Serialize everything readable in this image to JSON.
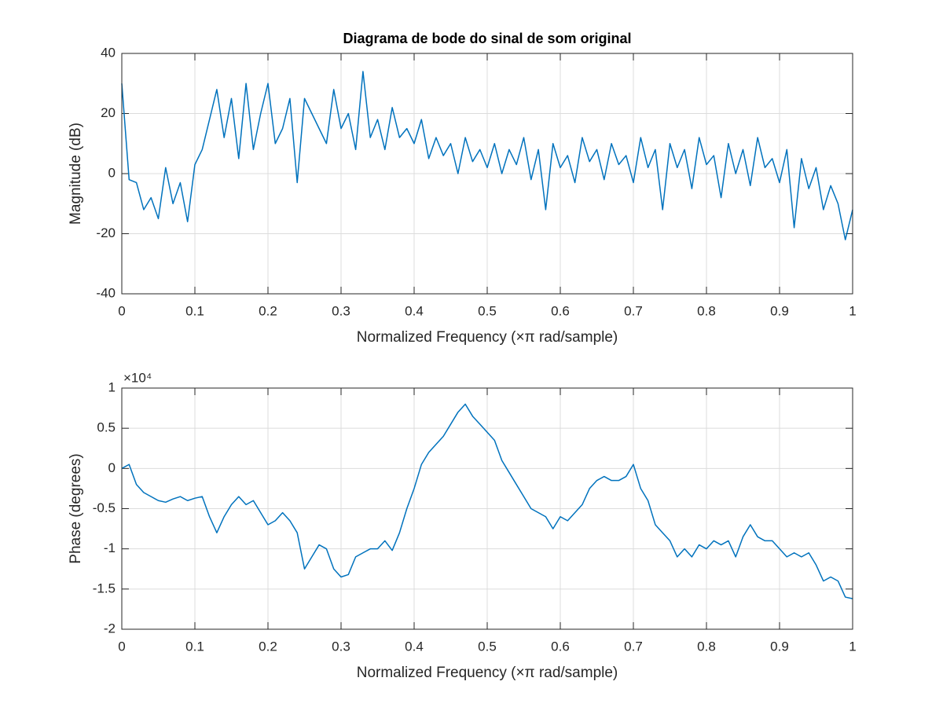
{
  "chart_data": [
    {
      "type": "line",
      "title": "Diagrama de bode do sinal de som original",
      "x_label": "Normalized Frequency  (×π rad/sample)",
      "y_label": "Magnitude (dB)",
      "x": [
        0,
        0.01,
        0.02,
        0.03,
        0.04,
        0.05,
        0.06,
        0.07,
        0.08,
        0.09,
        0.1,
        0.11,
        0.12,
        0.13,
        0.14,
        0.15,
        0.16,
        0.17,
        0.18,
        0.19,
        0.2,
        0.21,
        0.22,
        0.23,
        0.24,
        0.25,
        0.26,
        0.27,
        0.28,
        0.29,
        0.3,
        0.31,
        0.32,
        0.33,
        0.34,
        0.35,
        0.36,
        0.37,
        0.38,
        0.39,
        0.4,
        0.41,
        0.42,
        0.43,
        0.44,
        0.45,
        0.46,
        0.47,
        0.48,
        0.49,
        0.5,
        0.51,
        0.52,
        0.53,
        0.54,
        0.55,
        0.56,
        0.57,
        0.58,
        0.59,
        0.6,
        0.61,
        0.62,
        0.63,
        0.64,
        0.65,
        0.66,
        0.67,
        0.68,
        0.69,
        0.7,
        0.71,
        0.72,
        0.73,
        0.74,
        0.75,
        0.76,
        0.77,
        0.78,
        0.79,
        0.8,
        0.81,
        0.82,
        0.83,
        0.84,
        0.85,
        0.86,
        0.87,
        0.88,
        0.89,
        0.9,
        0.91,
        0.92,
        0.93,
        0.94,
        0.95,
        0.96,
        0.97,
        0.98,
        0.99,
        1
      ],
      "series": [
        {
          "color": "#0072bd",
          "values": [
            30,
            -2,
            -3,
            -12,
            -8,
            -15,
            2,
            -10,
            -3,
            -16,
            3,
            8,
            18,
            28,
            12,
            25,
            5,
            30,
            8,
            20,
            30,
            10,
            15,
            25,
            -3,
            25,
            20,
            15,
            10,
            28,
            15,
            20,
            8,
            34,
            12,
            18,
            8,
            22,
            12,
            15,
            10,
            18,
            5,
            12,
            6,
            10,
            0,
            12,
            4,
            8,
            2,
            10,
            0,
            8,
            3,
            12,
            -2,
            8,
            -12,
            10,
            2,
            6,
            -3,
            12,
            4,
            8,
            -2,
            10,
            3,
            6,
            -3,
            12,
            2,
            8,
            -12,
            10,
            2,
            8,
            -5,
            12,
            3,
            6,
            -8,
            10,
            0,
            8,
            -4,
            12,
            2,
            5,
            -3,
            8,
            -18,
            5,
            -5,
            2,
            -12,
            -4,
            -10,
            -22,
            -12
          ]
        }
      ],
      "xlim": [
        0,
        1
      ],
      "xticks": [
        0,
        0.1,
        0.2,
        0.3,
        0.4,
        0.5,
        0.6,
        0.7,
        0.8,
        0.9,
        1
      ],
      "ylim": [
        -40,
        40
      ],
      "yticks": [
        -40,
        -20,
        0,
        20,
        40
      ],
      "grid": true
    },
    {
      "type": "line",
      "x_label": "Normalized Frequency  (×π rad/sample)",
      "y_label": "Phase (degrees)",
      "y_multiplier": "×10⁴",
      "x": [
        0,
        0.01,
        0.02,
        0.03,
        0.04,
        0.05,
        0.06,
        0.07,
        0.08,
        0.09,
        0.1,
        0.11,
        0.12,
        0.13,
        0.14,
        0.15,
        0.16,
        0.17,
        0.18,
        0.19,
        0.2,
        0.21,
        0.22,
        0.23,
        0.24,
        0.25,
        0.26,
        0.27,
        0.28,
        0.29,
        0.3,
        0.31,
        0.32,
        0.33,
        0.34,
        0.35,
        0.36,
        0.37,
        0.38,
        0.39,
        0.4,
        0.41,
        0.42,
        0.43,
        0.44,
        0.45,
        0.46,
        0.47,
        0.48,
        0.49,
        0.5,
        0.51,
        0.52,
        0.53,
        0.54,
        0.55,
        0.56,
        0.57,
        0.58,
        0.59,
        0.6,
        0.61,
        0.62,
        0.63,
        0.64,
        0.65,
        0.66,
        0.67,
        0.68,
        0.69,
        0.7,
        0.71,
        0.72,
        0.73,
        0.74,
        0.75,
        0.76,
        0.77,
        0.78,
        0.79,
        0.8,
        0.81,
        0.82,
        0.83,
        0.84,
        0.85,
        0.86,
        0.87,
        0.88,
        0.89,
        0.9,
        0.91,
        0.92,
        0.93,
        0.94,
        0.95,
        0.96,
        0.97,
        0.98,
        0.99,
        1
      ],
      "series": [
        {
          "color": "#0072bd",
          "values": [
            0,
            500,
            -2000,
            -3000,
            -3500,
            -4000,
            -4200,
            -3800,
            -3500,
            -4000,
            -3700,
            -3500,
            -6000,
            -8000,
            -6000,
            -4500,
            -3500,
            -4500,
            -4000,
            -5500,
            -7000,
            -6500,
            -5500,
            -6500,
            -8000,
            -12500,
            -11000,
            -9500,
            -10000,
            -12500,
            -13500,
            -13200,
            -11000,
            -10500,
            -10000,
            -10000,
            -9000,
            -10200,
            -8000,
            -5000,
            -2500,
            500,
            2000,
            3000,
            4000,
            5500,
            7000,
            8000,
            6500,
            5500,
            4500,
            3500,
            1000,
            -500,
            -2000,
            -3500,
            -5000,
            -5500,
            -6000,
            -7500,
            -6000,
            -6500,
            -5500,
            -4500,
            -2500,
            -1500,
            -1000,
            -1500,
            -1500,
            -1000,
            500,
            -2500,
            -4000,
            -7000,
            -8000,
            -9000,
            -11000,
            -10000,
            -11000,
            -9500,
            -10000,
            -9000,
            -9500,
            -9000,
            -11000,
            -8500,
            -7000,
            -8500,
            -9000,
            -9000,
            -10000,
            -11000,
            -10500,
            -11000,
            -10500,
            -12000,
            -14000,
            -13500,
            -14000,
            -16000,
            -16200
          ]
        }
      ],
      "xlim": [
        0,
        1
      ],
      "xticks": [
        0,
        0.1,
        0.2,
        0.3,
        0.4,
        0.5,
        0.6,
        0.7,
        0.8,
        0.9,
        1
      ],
      "ylim": [
        -20000,
        10000
      ],
      "yticks": [
        {
          "value": -20000,
          "label": "-2"
        },
        {
          "value": -15000,
          "label": "-1.5"
        },
        {
          "value": -10000,
          "label": "-1"
        },
        {
          "value": -5000,
          "label": "-0.5"
        },
        {
          "value": 0,
          "label": "0"
        },
        {
          "value": 5000,
          "label": "0.5"
        },
        {
          "value": 10000,
          "label": "1"
        }
      ],
      "grid": true
    }
  ]
}
